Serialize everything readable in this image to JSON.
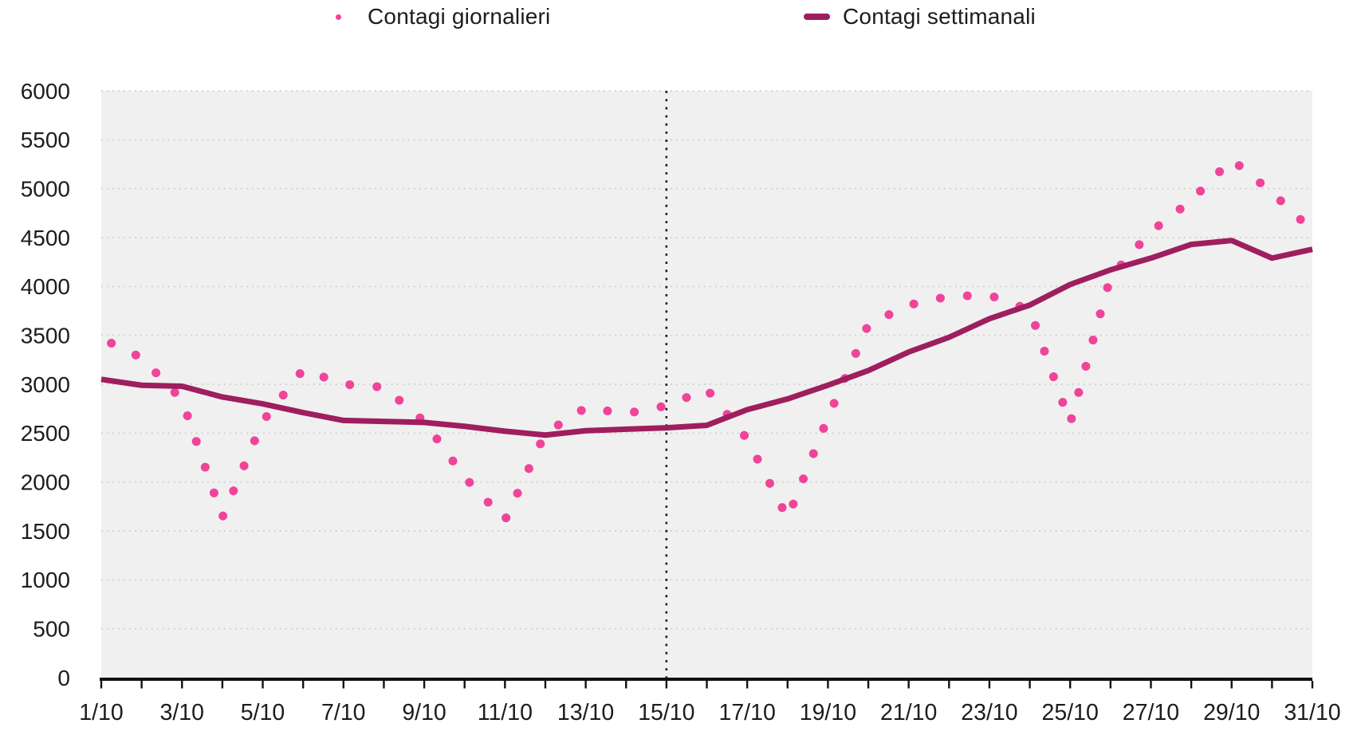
{
  "colors": {
    "daily": "#ef4498",
    "weekly": "#9e1e5e",
    "plot_background": "#f0f0f0",
    "grid": "#cdcdcd",
    "axis": "#111111",
    "vline": "#1a1a1a",
    "text": "#1c1c1c"
  },
  "chart_data": {
    "type": "line",
    "title": "",
    "xlabel": "",
    "ylabel": "",
    "legend_position": "top",
    "grid_horizontal": "dotted",
    "ylim": [
      0,
      6000
    ],
    "y_tick_step": 500,
    "y_tick_labels": [
      "0",
      "500",
      "1000",
      "1500",
      "2000",
      "2500",
      "3000",
      "3500",
      "4000",
      "4500",
      "5000",
      "5500",
      "6000"
    ],
    "categories": [
      "1/10",
      "2/10",
      "3/10",
      "4/10",
      "5/10",
      "6/10",
      "7/10",
      "8/10",
      "9/10",
      "10/10",
      "11/10",
      "12/10",
      "13/10",
      "14/10",
      "15/10",
      "16/10",
      "17/10",
      "18/10",
      "19/10",
      "20/10",
      "21/10",
      "22/10",
      "23/10",
      "24/10",
      "25/10",
      "26/10",
      "27/10",
      "28/10",
      "29/10",
      "30/10",
      "31/10"
    ],
    "x_tick_labels": [
      "1/10",
      "3/10",
      "5/10",
      "7/10",
      "9/10",
      "11/10",
      "13/10",
      "15/10",
      "17/10",
      "19/10",
      "21/10",
      "23/10",
      "25/10",
      "27/10",
      "29/10",
      "31/10"
    ],
    "vline_category": "15/10",
    "series": [
      {
        "name": "Contagi giornalieri",
        "type": "line",
        "line_style": "dotted",
        "color": "#ef4498",
        "values": [
          3470,
          3270,
          2840,
          1640,
          2620,
          3150,
          3000,
          2970,
          2620,
          2050,
          1610,
          2500,
          2760,
          2700,
          2780,
          2950,
          2440,
          1630,
          2660,
          3610,
          3810,
          3900,
          3910,
          3760,
          2600,
          4100,
          4560,
          4880,
          5300,
          4960,
          4570
        ]
      },
      {
        "name": "Contagi settimanali",
        "type": "line",
        "line_style": "solid",
        "color": "#9e1e5e",
        "values": [
          3050,
          2990,
          2980,
          2870,
          2800,
          2710,
          2630,
          2620,
          2610,
          2570,
          2520,
          2480,
          2525,
          2540,
          2555,
          2580,
          2740,
          2850,
          2990,
          3140,
          3330,
          3480,
          3670,
          3810,
          4020,
          4170,
          4290,
          4430,
          4470,
          4290,
          4380
        ]
      }
    ]
  }
}
